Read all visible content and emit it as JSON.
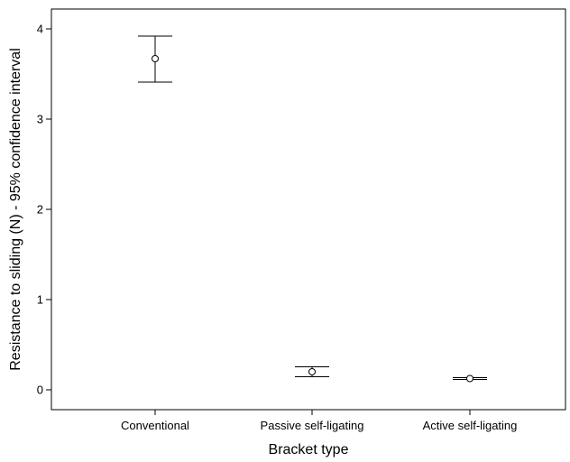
{
  "chart_data": {
    "type": "errorbar",
    "xlabel": "Bracket type",
    "ylabel": "Resistance to sliding (N) - 95% confidence interval",
    "categories": [
      "Conventional",
      "Passive self-ligating",
      "Active self-ligating"
    ],
    "series": [
      {
        "mean": [
          3.67,
          0.2,
          0.125
        ],
        "lower": [
          3.41,
          0.145,
          0.115
        ],
        "upper": [
          3.92,
          0.255,
          0.135
        ]
      }
    ],
    "y_ticks": [
      0,
      1,
      2,
      3,
      4
    ],
    "ylim": [
      -0.22,
      4.22
    ],
    "grid": false
  }
}
